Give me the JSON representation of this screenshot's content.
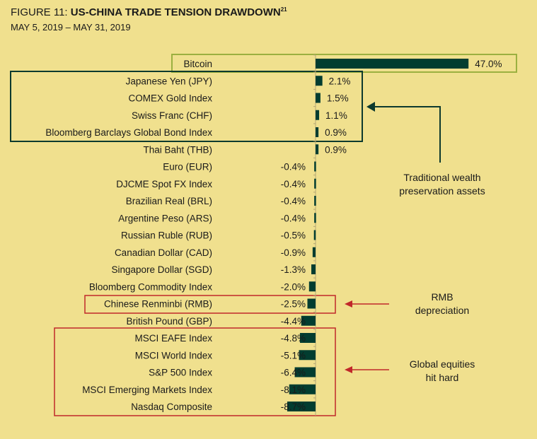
{
  "title": {
    "prefix": "FIGURE 11: ",
    "main": "US-CHINA TRADE TENSION DRAWDOWN",
    "sup": "21",
    "subtitle": "MAY 5, 2019 – MAY 31, 2019"
  },
  "colors": {
    "background": "#f0e08e",
    "bar": "#023d30",
    "green_box": "#9bb040",
    "dark_box": "#0d3a2e",
    "red": "#c0282a"
  },
  "chart_data": {
    "type": "bar",
    "orientation": "horizontal",
    "unit": "%",
    "title": "US-CHINA TRADE TENSION DRAWDOWN",
    "categories": [
      "Bitcoin",
      "Japanese Yen (JPY)",
      "COMEX Gold Index",
      "Swiss Franc (CHF)",
      "Bloomberg Barclays Global Bond Index",
      "Thai Baht (THB)",
      "Euro (EUR)",
      "DJCME Spot FX Index",
      "Brazilian Real (BRL)",
      "Argentine Peso (ARS)",
      "Russian Ruble (RUB)",
      "Canadian Dollar (CAD)",
      "Singapore Dollar (SGD)",
      "Bloomberg Commodity Index",
      "Chinese Renminbi (RMB)",
      "British Pound (GBP)",
      "MSCI EAFE Index",
      "MSCI World Index",
      "S&P 500 Index",
      "MSCI Emerging Markets Index",
      "Nasdaq Composite"
    ],
    "values": [
      47.0,
      2.1,
      1.5,
      1.1,
      0.9,
      0.9,
      -0.4,
      -0.4,
      -0.4,
      -0.4,
      -0.5,
      -0.9,
      -1.3,
      -2.0,
      -2.5,
      -4.4,
      -4.8,
      -5.1,
      -6.4,
      -8.1,
      -8.7
    ],
    "value_labels": [
      "47.0%",
      "2.1%",
      "1.5%",
      "1.1%",
      "0.9%",
      "0.9%",
      "-0.4%",
      "-0.4%",
      "-0.4%",
      "-0.4%",
      "-0.5%",
      "-0.9%",
      "-1.3%",
      "-2.0%",
      "-2.5%",
      "-4.4%",
      "-4.8%",
      "-5.1%",
      "-6.4%",
      "-8.1%",
      "-8.7%"
    ],
    "annotations": [
      {
        "lines": [
          "Traditional wealth",
          "preservation assets"
        ],
        "targets": "rows 2-5"
      },
      {
        "lines": [
          "RMB",
          "depreciation"
        ],
        "targets": "Chinese Renminbi (RMB)"
      },
      {
        "lines": [
          "Global equities",
          "hit hard"
        ],
        "targets": "rows 17-21"
      }
    ]
  }
}
